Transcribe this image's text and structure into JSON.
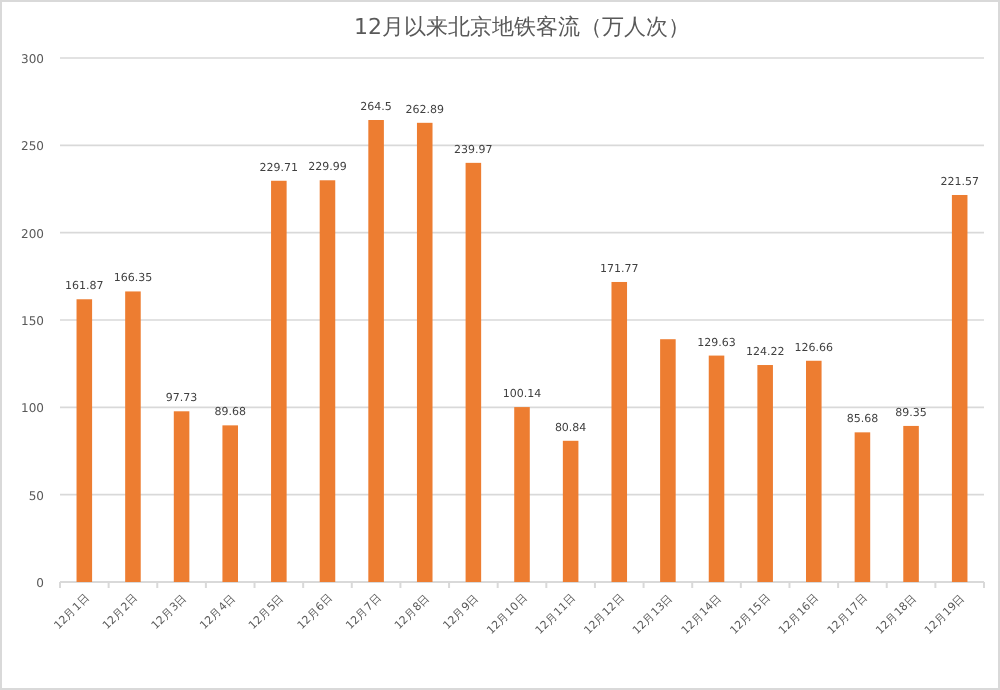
{
  "chart_data": {
    "type": "bar",
    "title": "12月以来北京地铁客流（万人次）",
    "categories": [
      "12月1日",
      "12月2日",
      "12月3日",
      "12月4日",
      "12月5日",
      "12月6日",
      "12月7日",
      "12月8日",
      "12月9日",
      "12月10日",
      "12月11日",
      "12月12日",
      "12月13日",
      "12月14日",
      "12月15日",
      "12月16日",
      "12月17日",
      "12月18日",
      "12月19日"
    ],
    "values": [
      161.87,
      166.35,
      97.73,
      89.68,
      229.71,
      229.99,
      264.5,
      262.89,
      239.97,
      100.14,
      80.84,
      171.77,
      139,
      129.63,
      124.22,
      126.66,
      85.68,
      89.35,
      221.57
    ],
    "value_labels": [
      "161.87",
      "166.35",
      "97.73",
      "89.68",
      "229.71",
      "229.99",
      "264.5",
      "262.89",
      "239.97",
      "100.14",
      "80.84",
      "171.77",
      null,
      "129.63",
      "124.22",
      "126.66",
      "85.68",
      "89.35",
      "221.57"
    ],
    "color": "#ed7d31",
    "ylim": [
      0,
      300
    ],
    "yticks": [
      0,
      50,
      100,
      150,
      200,
      250,
      300
    ],
    "grid": "y"
  }
}
